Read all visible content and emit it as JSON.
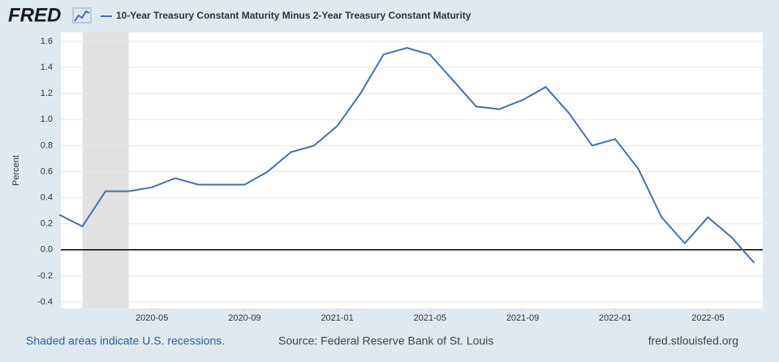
{
  "header": {
    "logo": "FRED"
  },
  "chart_data": {
    "type": "line",
    "y_label": "Percent",
    "x": [
      "2020-01",
      "2020-02",
      "2020-03",
      "2020-04",
      "2020-05",
      "2020-06",
      "2020-07",
      "2020-08",
      "2020-09",
      "2020-10",
      "2020-11",
      "2020-12",
      "2021-01",
      "2021-02",
      "2021-03",
      "2021-04",
      "2021-05",
      "2021-06",
      "2021-07",
      "2021-08",
      "2021-09",
      "2021-10",
      "2021-11",
      "2021-12",
      "2022-01",
      "2022-02",
      "2022-03",
      "2022-04",
      "2022-05",
      "2022-06",
      "2022-07"
    ],
    "series": [
      {
        "name": "10-Year Treasury Constant Maturity Minus 2-Year Treasury Constant Maturity",
        "color": "#4572a7",
        "values": [
          0.27,
          0.18,
          0.45,
          0.45,
          0.48,
          0.55,
          0.5,
          0.5,
          0.5,
          0.6,
          0.75,
          0.8,
          0.95,
          1.2,
          1.5,
          1.55,
          1.5,
          1.3,
          1.1,
          1.08,
          1.15,
          1.25,
          1.05,
          0.8,
          0.85,
          0.62,
          0.25,
          0.05,
          0.25,
          0.1,
          -0.1
        ]
      }
    ],
    "xlim": [
      "2020-01",
      "2022-07"
    ],
    "xticks": [
      "2020-05",
      "2020-09",
      "2021-01",
      "2021-05",
      "2021-09",
      "2022-01",
      "2022-05"
    ],
    "ylim": [
      -0.4,
      1.6
    ],
    "yticks": [
      -0.4,
      -0.2,
      {
        "value": 0,
        "label": "0.0"
      },
      0.2,
      0.4,
      0.6,
      0.8,
      {
        "value": 1,
        "label": "1.0"
      },
      1.2,
      1.4,
      1.6
    ],
    "grid": true,
    "recessions": [
      {
        "start": "2020-02",
        "end": "2020-04"
      }
    ]
  },
  "footer": {
    "note": "Shaded areas indicate U.S. recessions.",
    "source": "Source: Federal Reserve Bank of St. Louis",
    "site": "fred.stlouisfed.org"
  }
}
